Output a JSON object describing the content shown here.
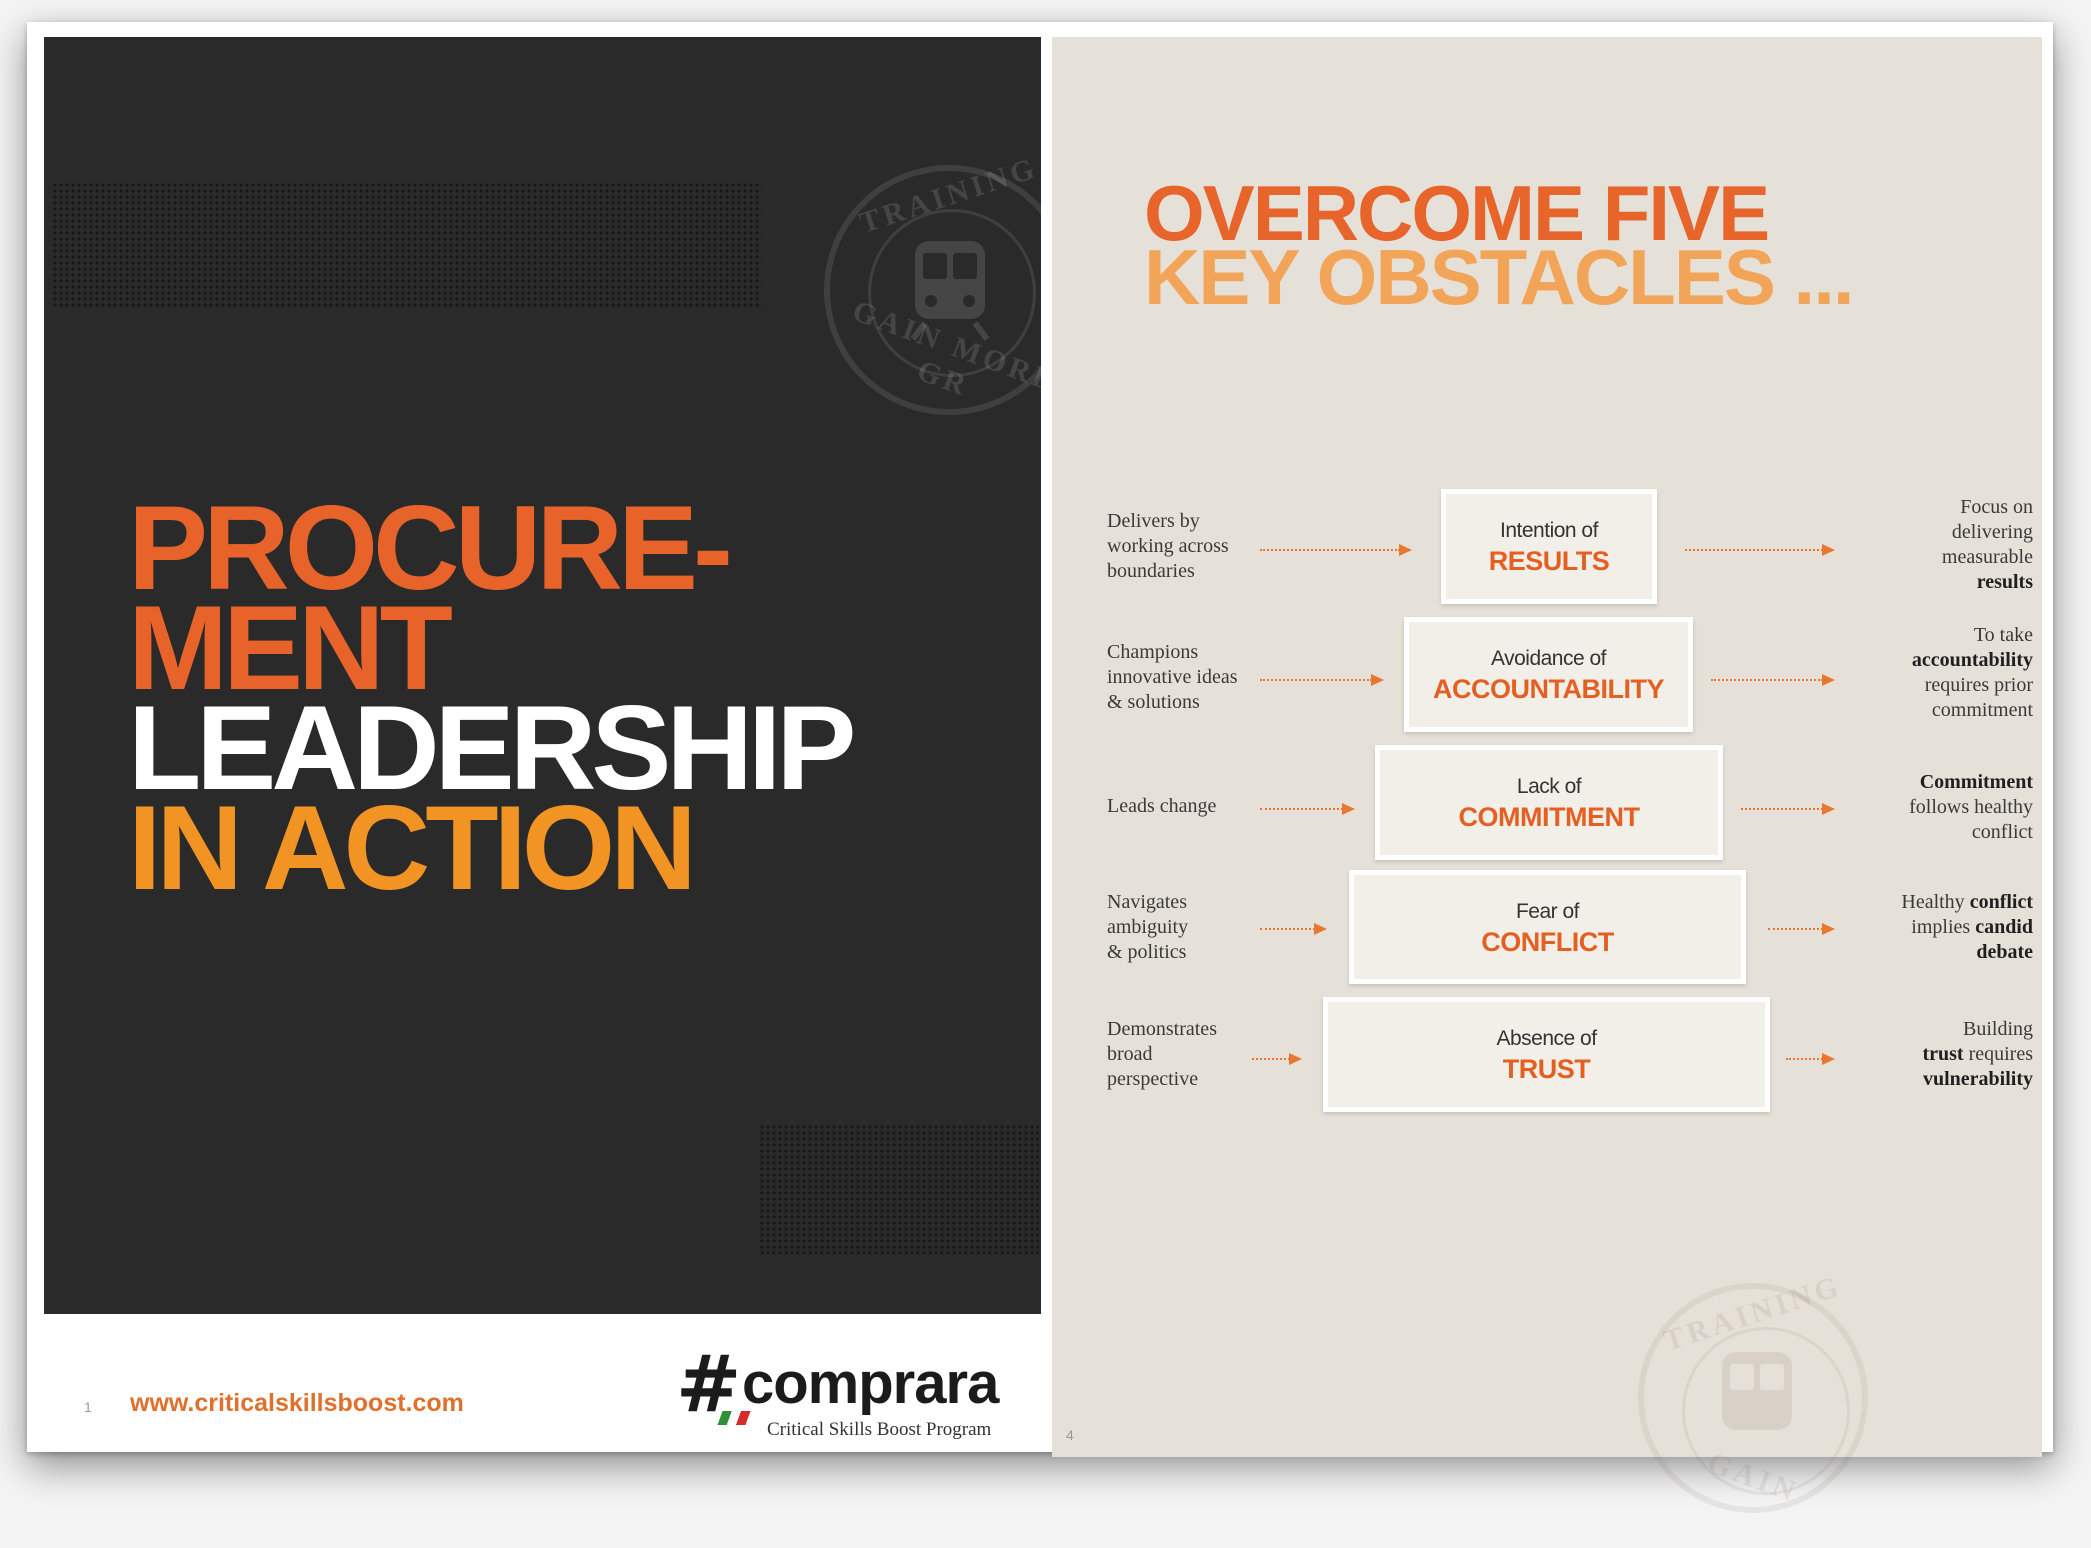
{
  "cover": {
    "title_lines": [
      "PROCURE-",
      "MENT",
      "LEADERSHIP",
      "IN ACTION"
    ],
    "page_number": "1",
    "url": "www.criticalskillsboost.com",
    "stamp": {
      "top": "TRAINING",
      "bottom": "GAIN MORE GR"
    }
  },
  "logo": {
    "symbol": "#",
    "word": "comprara",
    "tagline": "Critical Skills Boost Program"
  },
  "spread": {
    "page_number": "4",
    "heading_lines": [
      "OVERCOME FIVE",
      "KEY OBSTACLES ..."
    ],
    "stamp": {
      "top": "TRAINING",
      "bottom": "GAIN"
    },
    "obstacles": [
      {
        "prefix": "Intention of",
        "key": "RESULTS",
        "left_desc": [
          "Delivers by",
          "working across",
          "boundaries"
        ],
        "right_desc": [
          [
            {
              "t": "Focus on",
              "b": false
            }
          ],
          [
            {
              "t": "delivering",
              "b": false
            }
          ],
          [
            {
              "t": "measurable",
              "b": false
            }
          ],
          [
            {
              "t": "results",
              "b": true
            }
          ]
        ]
      },
      {
        "prefix": "Avoidance of",
        "key": "ACCOUNTABILITY",
        "left_desc": [
          "Champions",
          "innovative ideas",
          "& solutions"
        ],
        "right_desc": [
          [
            {
              "t": "To take",
              "b": false
            }
          ],
          [
            {
              "t": "accountability",
              "b": true
            }
          ],
          [
            {
              "t": "requires prior",
              "b": false
            }
          ],
          [
            {
              "t": "commitment",
              "b": false
            }
          ]
        ]
      },
      {
        "prefix": "Lack of",
        "key": "COMMITMENT",
        "left_desc": [
          "Leads change"
        ],
        "right_desc": [
          [
            {
              "t": "Commitment",
              "b": true
            }
          ],
          [
            {
              "t": "follows healthy",
              "b": false
            }
          ],
          [
            {
              "t": "conflict",
              "b": false
            }
          ]
        ]
      },
      {
        "prefix": "Fear of",
        "key": "CONFLICT",
        "left_desc": [
          "Navigates",
          "ambiguity",
          "& politics"
        ],
        "right_desc": [
          [
            {
              "t": "Healthy ",
              "b": false
            },
            {
              "t": "conflict",
              "b": true
            }
          ],
          [
            {
              "t": "implies ",
              "b": false
            },
            {
              "t": "candid",
              "b": true
            }
          ],
          [
            {
              "t": "debate",
              "b": true
            }
          ]
        ]
      },
      {
        "prefix": "Absence of",
        "key": "TRUST",
        "left_desc": [
          "Demonstrates",
          "broad",
          "perspective"
        ],
        "right_desc": [
          [
            {
              "t": "Building",
              "b": false
            }
          ],
          [
            {
              "t": "trust",
              "b": true
            },
            {
              "t": " requires",
              "b": false
            }
          ],
          [
            {
              "t": "vulnerability",
              "b": true
            }
          ]
        ]
      }
    ]
  },
  "colors": {
    "dark_page": "#2b2a2b",
    "orange": "#e8632a",
    "amber": "#f29424",
    "light_orange": "#f2a458",
    "spread_bg": "#e6e1d8"
  }
}
